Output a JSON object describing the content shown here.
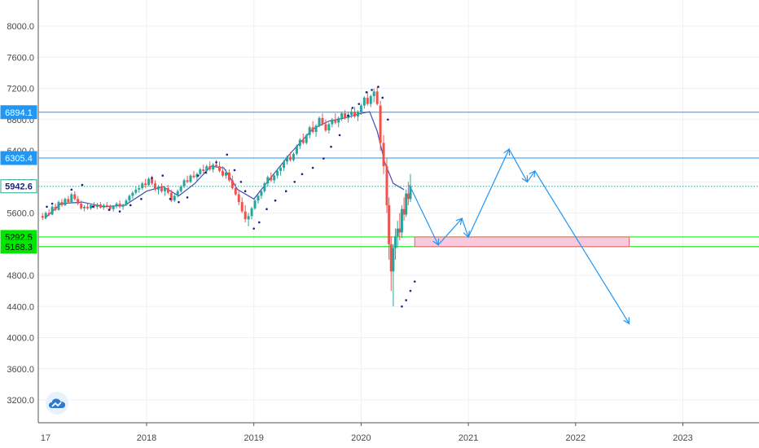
{
  "chart_data": {
    "type": "candlestick",
    "title": "",
    "xlabel": "",
    "ylabel": "",
    "ylim": [
      3050,
      8200
    ],
    "grid": true,
    "y_ticks": [
      "8000.0",
      "7600.0",
      "7200.0",
      "6800.0",
      "6400.0",
      "6000.0",
      "5600.0",
      "5200.0",
      "4800.0",
      "4400.0",
      "4000.0",
      "3600.0",
      "3200.0"
    ],
    "x_ticks": [
      {
        "label": "17",
        "year": 2017.05
      },
      {
        "label": "2018",
        "year": 2018
      },
      {
        "label": "2019",
        "year": 2019
      },
      {
        "label": "2020",
        "year": 2020
      },
      {
        "label": "2021",
        "year": 2021
      },
      {
        "label": "2022",
        "year": 2022
      },
      {
        "label": "2023",
        "year": 2023
      }
    ],
    "price_levels": [
      {
        "value": 6894.1,
        "label": "6894.1",
        "color": "#2196f3",
        "style": "solid"
      },
      {
        "value": 6305.4,
        "label": "6305.4",
        "color": "#2196f3",
        "style": "solid"
      },
      {
        "value": 5942.6,
        "label": "5942.6",
        "color": "#26a69a",
        "style": "dotted"
      },
      {
        "value": 5292.5,
        "label": "5292.5",
        "color": "#00e600",
        "style": "solid"
      },
      {
        "value": 5168.3,
        "label": "5168.3",
        "color": "#00e600",
        "style": "solid"
      }
    ],
    "zone": {
      "x_start": 2020.5,
      "x_end": 2022.5,
      "y_top": 5292.5,
      "y_bottom": 5168.3,
      "fill": "#f8c8dc",
      "stroke": "#e06666"
    },
    "projection_path": [
      [
        2020.45,
        5960
      ],
      [
        2020.72,
        5190
      ],
      [
        2020.94,
        5530
      ],
      [
        2021.0,
        5290
      ],
      [
        2021.38,
        6420
      ],
      [
        2021.55,
        6000
      ],
      [
        2021.62,
        6140
      ],
      [
        2022.5,
        4180
      ]
    ],
    "ma_points": [
      [
        2017.05,
        5530
      ],
      [
        2017.2,
        5720
      ],
      [
        2017.4,
        5740
      ],
      [
        2017.6,
        5680
      ],
      [
        2017.8,
        5700
      ],
      [
        2018.0,
        5880
      ],
      [
        2018.15,
        5940
      ],
      [
        2018.3,
        5820
      ],
      [
        2018.45,
        5980
      ],
      [
        2018.6,
        6200
      ],
      [
        2018.72,
        6180
      ],
      [
        2018.85,
        5900
      ],
      [
        2019.0,
        5780
      ],
      [
        2019.15,
        6040
      ],
      [
        2019.35,
        6380
      ],
      [
        2019.55,
        6680
      ],
      [
        2019.7,
        6780
      ],
      [
        2019.85,
        6820
      ],
      [
        2020.0,
        6880
      ],
      [
        2020.08,
        6900
      ],
      [
        2020.15,
        6650
      ],
      [
        2020.22,
        6250
      ],
      [
        2020.3,
        5980
      ],
      [
        2020.4,
        5900
      ]
    ],
    "sar_points": [
      [
        2017.07,
        5680
      ],
      [
        2017.12,
        5720
      ],
      [
        2017.3,
        5900
      ],
      [
        2017.4,
        5960
      ],
      [
        2017.5,
        5680
      ],
      [
        2017.65,
        5640
      ],
      [
        2017.75,
        5620
      ],
      [
        2017.85,
        5700
      ],
      [
        2017.95,
        5780
      ],
      [
        2018.05,
        6050
      ],
      [
        2018.15,
        6080
      ],
      [
        2018.22,
        5780
      ],
      [
        2018.3,
        5740
      ],
      [
        2018.38,
        5800
      ],
      [
        2018.48,
        6080
      ],
      [
        2018.55,
        6120
      ],
      [
        2018.65,
        6250
      ],
      [
        2018.75,
        6350
      ],
      [
        2018.82,
        6150
      ],
      [
        2018.88,
        6000
      ],
      [
        2018.92,
        5880
      ],
      [
        2019.0,
        5400
      ],
      [
        2019.05,
        5480
      ],
      [
        2019.12,
        5650
      ],
      [
        2019.2,
        5760
      ],
      [
        2019.3,
        5880
      ],
      [
        2019.38,
        6000
      ],
      [
        2019.45,
        6100
      ],
      [
        2019.55,
        6180
      ],
      [
        2019.65,
        6300
      ],
      [
        2019.72,
        6450
      ],
      [
        2019.8,
        6600
      ],
      [
        2019.88,
        6850
      ],
      [
        2019.92,
        6950
      ],
      [
        2019.98,
        7000
      ],
      [
        2020.05,
        7150
      ],
      [
        2020.1,
        7180
      ],
      [
        2020.16,
        7220
      ],
      [
        2020.2,
        7080
      ],
      [
        2020.25,
        6800
      ],
      [
        2020.38,
        4400
      ],
      [
        2020.42,
        4480
      ],
      [
        2020.46,
        4600
      ],
      [
        2020.5,
        4720
      ]
    ],
    "candles": [
      [
        2017.03,
        5560,
        5600,
        5510,
        5540
      ],
      [
        2017.06,
        5540,
        5620,
        5520,
        5600
      ],
      [
        2017.09,
        5600,
        5650,
        5560,
        5580
      ],
      [
        2017.12,
        5580,
        5700,
        5570,
        5680
      ],
      [
        2017.15,
        5680,
        5720,
        5620,
        5640
      ],
      [
        2017.18,
        5640,
        5760,
        5630,
        5740
      ],
      [
        2017.21,
        5740,
        5780,
        5680,
        5700
      ],
      [
        2017.24,
        5700,
        5800,
        5690,
        5780
      ],
      [
        2017.27,
        5780,
        5820,
        5720,
        5740
      ],
      [
        2017.3,
        5740,
        5860,
        5730,
        5840
      ],
      [
        2017.33,
        5840,
        5880,
        5760,
        5780
      ],
      [
        2017.36,
        5780,
        5820,
        5700,
        5720
      ],
      [
        2017.39,
        5720,
        5760,
        5640,
        5660
      ],
      [
        2017.42,
        5660,
        5700,
        5620,
        5680
      ],
      [
        2017.45,
        5680,
        5720,
        5640,
        5660
      ],
      [
        2017.48,
        5660,
        5720,
        5640,
        5700
      ],
      [
        2017.51,
        5700,
        5740,
        5660,
        5680
      ],
      [
        2017.54,
        5680,
        5730,
        5650,
        5710
      ],
      [
        2017.57,
        5710,
        5740,
        5660,
        5670
      ],
      [
        2017.6,
        5670,
        5720,
        5640,
        5700
      ],
      [
        2017.63,
        5700,
        5740,
        5660,
        5680
      ],
      [
        2017.66,
        5680,
        5710,
        5630,
        5650
      ],
      [
        2017.69,
        5650,
        5700,
        5620,
        5690
      ],
      [
        2017.72,
        5690,
        5740,
        5660,
        5720
      ],
      [
        2017.75,
        5720,
        5760,
        5660,
        5680
      ],
      [
        2017.78,
        5680,
        5720,
        5640,
        5700
      ],
      [
        2017.81,
        5700,
        5780,
        5690,
        5760
      ],
      [
        2017.84,
        5760,
        5840,
        5740,
        5820
      ],
      [
        2017.87,
        5820,
        5880,
        5780,
        5860
      ],
      [
        2017.9,
        5860,
        5940,
        5840,
        5900
      ],
      [
        2017.93,
        5900,
        5960,
        5860,
        5920
      ],
      [
        2017.96,
        5920,
        6000,
        5900,
        5980
      ],
      [
        2017.99,
        5980,
        6040,
        5920,
        5960
      ],
      [
        2018.02,
        5960,
        6060,
        5940,
        6040
      ],
      [
        2018.05,
        6040,
        6080,
        5960,
        5980
      ],
      [
        2018.08,
        5980,
        6020,
        5880,
        5900
      ],
      [
        2018.11,
        5900,
        5960,
        5840,
        5940
      ],
      [
        2018.14,
        5940,
        5980,
        5860,
        5880
      ],
      [
        2018.17,
        5880,
        5940,
        5820,
        5920
      ],
      [
        2018.2,
        5920,
        5960,
        5840,
        5860
      ],
      [
        2018.23,
        5860,
        5900,
        5740,
        5760
      ],
      [
        2018.26,
        5760,
        5840,
        5740,
        5820
      ],
      [
        2018.29,
        5820,
        5900,
        5800,
        5880
      ],
      [
        2018.32,
        5880,
        5960,
        5860,
        5940
      ],
      [
        2018.35,
        5940,
        6040,
        5920,
        6020
      ],
      [
        2018.38,
        6020,
        6080,
        5980,
        6000
      ],
      [
        2018.41,
        6000,
        6100,
        5980,
        6080
      ],
      [
        2018.44,
        6080,
        6140,
        6040,
        6060
      ],
      [
        2018.47,
        6060,
        6120,
        6020,
        6100
      ],
      [
        2018.5,
        6100,
        6180,
        6080,
        6160
      ],
      [
        2018.53,
        6160,
        6220,
        6100,
        6140
      ],
      [
        2018.56,
        6140,
        6220,
        6100,
        6200
      ],
      [
        2018.59,
        6200,
        6260,
        6140,
        6160
      ],
      [
        2018.62,
        6160,
        6240,
        6120,
        6220
      ],
      [
        2018.65,
        6220,
        6280,
        6180,
        6200
      ],
      [
        2018.68,
        6200,
        6260,
        6120,
        6140
      ],
      [
        2018.71,
        6140,
        6200,
        6060,
        6080
      ],
      [
        2018.74,
        6080,
        6160,
        6040,
        6120
      ],
      [
        2018.77,
        6120,
        6160,
        6000,
        6020
      ],
      [
        2018.8,
        6020,
        6080,
        5900,
        5920
      ],
      [
        2018.83,
        5920,
        5980,
        5820,
        5840
      ],
      [
        2018.86,
        5840,
        5900,
        5700,
        5740
      ],
      [
        2018.89,
        5740,
        5800,
        5600,
        5620
      ],
      [
        2018.92,
        5620,
        5700,
        5480,
        5520
      ],
      [
        2018.95,
        5520,
        5600,
        5430,
        5560
      ],
      [
        2018.98,
        5560,
        5680,
        5520,
        5660
      ],
      [
        2019.01,
        5660,
        5780,
        5640,
        5760
      ],
      [
        2019.04,
        5760,
        5840,
        5720,
        5820
      ],
      [
        2019.07,
        5820,
        5900,
        5780,
        5880
      ],
      [
        2019.1,
        5880,
        6000,
        5860,
        5980
      ],
      [
        2019.13,
        5980,
        6080,
        5940,
        6060
      ],
      [
        2019.16,
        6060,
        6120,
        6000,
        6020
      ],
      [
        2019.19,
        6020,
        6100,
        5980,
        6080
      ],
      [
        2019.22,
        6080,
        6160,
        6040,
        6140
      ],
      [
        2019.25,
        6140,
        6200,
        6080,
        6180
      ],
      [
        2019.28,
        6180,
        6280,
        6140,
        6260
      ],
      [
        2019.31,
        6260,
        6340,
        6220,
        6320
      ],
      [
        2019.34,
        6320,
        6380,
        6260,
        6280
      ],
      [
        2019.37,
        6280,
        6380,
        6260,
        6360
      ],
      [
        2019.4,
        6360,
        6480,
        6340,
        6460
      ],
      [
        2019.43,
        6460,
        6560,
        6420,
        6540
      ],
      [
        2019.46,
        6540,
        6620,
        6480,
        6500
      ],
      [
        2019.49,
        6500,
        6620,
        6480,
        6600
      ],
      [
        2019.52,
        6600,
        6720,
        6560,
        6700
      ],
      [
        2019.55,
        6700,
        6780,
        6620,
        6640
      ],
      [
        2019.58,
        6640,
        6740,
        6580,
        6720
      ],
      [
        2019.61,
        6720,
        6840,
        6700,
        6820
      ],
      [
        2019.64,
        6820,
        6880,
        6720,
        6740
      ],
      [
        2019.67,
        6740,
        6800,
        6640,
        6660
      ],
      [
        2019.7,
        6660,
        6760,
        6620,
        6740
      ],
      [
        2019.73,
        6740,
        6820,
        6700,
        6800
      ],
      [
        2019.76,
        6800,
        6880,
        6740,
        6760
      ],
      [
        2019.79,
        6760,
        6840,
        6700,
        6820
      ],
      [
        2019.82,
        6820,
        6900,
        6780,
        6880
      ],
      [
        2019.85,
        6880,
        6920,
        6800,
        6820
      ],
      [
        2019.88,
        6820,
        6900,
        6760,
        6860
      ],
      [
        2019.91,
        6860,
        6940,
        6820,
        6900
      ],
      [
        2019.94,
        6900,
        6960,
        6820,
        6840
      ],
      [
        2019.97,
        6840,
        6920,
        6780,
        6900
      ],
      [
        2020.0,
        6900,
        7000,
        6860,
        6980
      ],
      [
        2020.03,
        6980,
        7100,
        6940,
        7080
      ],
      [
        2020.06,
        7080,
        7160,
        6980,
        7000
      ],
      [
        2020.09,
        7000,
        7120,
        6960,
        7100
      ],
      [
        2020.12,
        7100,
        7200,
        7020,
        7160
      ],
      [
        2020.15,
        7160,
        7220,
        6980,
        7000
      ],
      [
        2020.18,
        6980,
        7040,
        6400,
        6500
      ],
      [
        2020.21,
        6500,
        6600,
        6100,
        6200
      ],
      [
        2020.24,
        6200,
        6300,
        5600,
        5700
      ],
      [
        2020.26,
        5700,
        5800,
        5000,
        5200
      ],
      [
        2020.28,
        5200,
        5300,
        4600,
        4850
      ],
      [
        2020.3,
        4850,
        5200,
        4400,
        5150
      ],
      [
        2020.32,
        5150,
        5400,
        5000,
        5300
      ],
      [
        2020.34,
        5300,
        5500,
        5150,
        5400
      ],
      [
        2020.36,
        5400,
        5600,
        5250,
        5350
      ],
      [
        2020.38,
        5350,
        5700,
        5280,
        5650
      ],
      [
        2020.4,
        5650,
        5800,
        5500,
        5580
      ],
      [
        2020.42,
        5580,
        5900,
        5550,
        5850
      ],
      [
        2020.44,
        5850,
        6000,
        5700,
        5780
      ],
      [
        2020.46,
        5780,
        6100,
        5740,
        5942
      ]
    ]
  },
  "ui": {
    "accent": "#2196f3",
    "up_color": "#26a69a",
    "down_color": "#ef5350",
    "logo_icon": "tradingview-cloud-icon"
  }
}
